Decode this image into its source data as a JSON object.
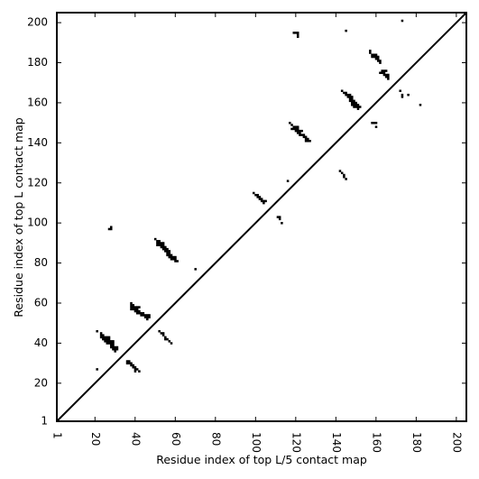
{
  "chart_data": {
    "type": "heatmap",
    "title": "",
    "xlabel": "Residue index of top L/5 contact map",
    "ylabel": "Residue index of top L contact map",
    "xlim": [
      1,
      205
    ],
    "ylim": [
      1,
      205
    ],
    "x_ticks": [
      1,
      20,
      40,
      60,
      80,
      100,
      120,
      140,
      160,
      180,
      200
    ],
    "y_ticks": [
      1,
      20,
      40,
      60,
      80,
      100,
      120,
      140,
      160,
      180,
      200
    ],
    "x_tick_labels": [
      "1",
      "20",
      "40",
      "60",
      "80",
      "100",
      "120",
      "140",
      "160",
      "180",
      "200"
    ],
    "y_tick_labels": [
      "1",
      "20",
      "40",
      "60",
      "80",
      "100",
      "120",
      "140",
      "160",
      "180",
      "200"
    ],
    "x_tick_rotation": -90,
    "grid": false,
    "diagonal_line": true,
    "colors": {
      "contact": "#000000",
      "background": "#ffffff"
    },
    "contacts_upper_top_L": [
      [
        119,
        195
      ],
      [
        120,
        195
      ],
      [
        121,
        195
      ],
      [
        121,
        194
      ],
      [
        121,
        193
      ],
      [
        145,
        196
      ],
      [
        173,
        201
      ],
      [
        157,
        186
      ],
      [
        157,
        185
      ],
      [
        158,
        184
      ],
      [
        159,
        184
      ],
      [
        160,
        184
      ],
      [
        158,
        183
      ],
      [
        159,
        183
      ],
      [
        160,
        183
      ],
      [
        161,
        183
      ],
      [
        160,
        182
      ],
      [
        161,
        182
      ],
      [
        161,
        181
      ],
      [
        162,
        181
      ],
      [
        162,
        180
      ],
      [
        163,
        176
      ],
      [
        164,
        176
      ],
      [
        165,
        176
      ],
      [
        162,
        175
      ],
      [
        163,
        175
      ],
      [
        164,
        175
      ],
      [
        164,
        174
      ],
      [
        165,
        174
      ],
      [
        166,
        174
      ],
      [
        165,
        173
      ],
      [
        166,
        173
      ],
      [
        166,
        172
      ],
      [
        143,
        166
      ],
      [
        144,
        165
      ],
      [
        145,
        165
      ],
      [
        145,
        164
      ],
      [
        146,
        164
      ],
      [
        147,
        164
      ],
      [
        146,
        163
      ],
      [
        147,
        163
      ],
      [
        148,
        163
      ],
      [
        147,
        162
      ],
      [
        148,
        162
      ],
      [
        147,
        161
      ],
      [
        148,
        161
      ],
      [
        149,
        161
      ],
      [
        148,
        160
      ],
      [
        149,
        160
      ],
      [
        150,
        160
      ],
      [
        148,
        159
      ],
      [
        149,
        159
      ],
      [
        150,
        159
      ],
      [
        151,
        159
      ],
      [
        149,
        158
      ],
      [
        150,
        158
      ],
      [
        151,
        158
      ],
      [
        152,
        158
      ],
      [
        151,
        157
      ],
      [
        172,
        166
      ],
      [
        173,
        164
      ],
      [
        176,
        164
      ],
      [
        173,
        163
      ],
      [
        182,
        159
      ],
      [
        117,
        150
      ],
      [
        118,
        149
      ],
      [
        119,
        148
      ],
      [
        120,
        148
      ],
      [
        121,
        148
      ],
      [
        118,
        147
      ],
      [
        119,
        147
      ],
      [
        120,
        147
      ],
      [
        121,
        147
      ],
      [
        120,
        146
      ],
      [
        121,
        146
      ],
      [
        122,
        146
      ],
      [
        123,
        146
      ],
      [
        121,
        145
      ],
      [
        122,
        145
      ],
      [
        122,
        144
      ],
      [
        123,
        144
      ],
      [
        124,
        144
      ],
      [
        124,
        143
      ],
      [
        125,
        143
      ],
      [
        125,
        142
      ],
      [
        126,
        142
      ],
      [
        125,
        141
      ],
      [
        126,
        141
      ],
      [
        127,
        141
      ],
      [
        158,
        150
      ],
      [
        159,
        150
      ],
      [
        160,
        150
      ],
      [
        160,
        148
      ],
      [
        116,
        121
      ],
      [
        142,
        126
      ],
      [
        143,
        125
      ],
      [
        144,
        124
      ],
      [
        144,
        123
      ],
      [
        145,
        122
      ],
      [
        99,
        115
      ],
      [
        100,
        114
      ],
      [
        101,
        114
      ],
      [
        101,
        113
      ],
      [
        102,
        113
      ],
      [
        102,
        112
      ],
      [
        103,
        112
      ],
      [
        103,
        111
      ],
      [
        104,
        111
      ],
      [
        105,
        111
      ],
      [
        104,
        110
      ],
      [
        111,
        103
      ],
      [
        112,
        103
      ],
      [
        112,
        102
      ],
      [
        113,
        100
      ],
      [
        27,
        97
      ],
      [
        28,
        97
      ],
      [
        28,
        98
      ],
      [
        50,
        92
      ],
      [
        51,
        91
      ],
      [
        52,
        91
      ],
      [
        51,
        90
      ],
      [
        52,
        90
      ],
      [
        53,
        90
      ],
      [
        54,
        90
      ],
      [
        51,
        89
      ],
      [
        52,
        89
      ],
      [
        53,
        89
      ],
      [
        54,
        89
      ],
      [
        53,
        88
      ],
      [
        54,
        88
      ],
      [
        55,
        88
      ],
      [
        54,
        87
      ],
      [
        55,
        87
      ],
      [
        56,
        87
      ],
      [
        55,
        86
      ],
      [
        56,
        86
      ],
      [
        57,
        86
      ],
      [
        56,
        85
      ],
      [
        57,
        85
      ],
      [
        56,
        84
      ],
      [
        57,
        84
      ],
      [
        58,
        84
      ],
      [
        57,
        83
      ],
      [
        58,
        83
      ],
      [
        59,
        83
      ],
      [
        60,
        83
      ],
      [
        58,
        82
      ],
      [
        59,
        82
      ],
      [
        60,
        82
      ],
      [
        60,
        81
      ],
      [
        61,
        81
      ]
    ],
    "contacts_lower_top_L5": [
      [
        70,
        77
      ],
      [
        38,
        60
      ],
      [
        38,
        59
      ],
      [
        39,
        59
      ],
      [
        38,
        58
      ],
      [
        39,
        58
      ],
      [
        40,
        58
      ],
      [
        41,
        58
      ],
      [
        42,
        58
      ],
      [
        38,
        57
      ],
      [
        39,
        57
      ],
      [
        40,
        57
      ],
      [
        41,
        57
      ],
      [
        40,
        56
      ],
      [
        41,
        56
      ],
      [
        42,
        56
      ],
      [
        41,
        55
      ],
      [
        42,
        55
      ],
      [
        43,
        55
      ],
      [
        44,
        55
      ],
      [
        43,
        54
      ],
      [
        44,
        54
      ],
      [
        45,
        54
      ],
      [
        46,
        54
      ],
      [
        47,
        54
      ],
      [
        45,
        53
      ],
      [
        46,
        53
      ],
      [
        47,
        53
      ],
      [
        46,
        52
      ],
      [
        21,
        46
      ],
      [
        23,
        45
      ],
      [
        23,
        44
      ],
      [
        24,
        44
      ],
      [
        23,
        43
      ],
      [
        24,
        43
      ],
      [
        25,
        43
      ],
      [
        26,
        43
      ],
      [
        27,
        43
      ],
      [
        24,
        42
      ],
      [
        25,
        42
      ],
      [
        26,
        42
      ],
      [
        27,
        42
      ],
      [
        25,
        41
      ],
      [
        26,
        41
      ],
      [
        27,
        41
      ],
      [
        28,
        41
      ],
      [
        29,
        41
      ],
      [
        26,
        40
      ],
      [
        27,
        40
      ],
      [
        28,
        40
      ],
      [
        29,
        40
      ],
      [
        28,
        39
      ],
      [
        29,
        39
      ],
      [
        28,
        38
      ],
      [
        29,
        38
      ],
      [
        30,
        38
      ],
      [
        31,
        38
      ],
      [
        29,
        37
      ],
      [
        30,
        37
      ],
      [
        31,
        37
      ],
      [
        30,
        36
      ],
      [
        52,
        46
      ],
      [
        53,
        45
      ],
      [
        54,
        45
      ],
      [
        54,
        44
      ],
      [
        55,
        43
      ],
      [
        55,
        42
      ],
      [
        56,
        42
      ],
      [
        57,
        41
      ],
      [
        58,
        40
      ],
      [
        36,
        31
      ],
      [
        37,
        31
      ],
      [
        36,
        30
      ],
      [
        37,
        30
      ],
      [
        38,
        30
      ],
      [
        38,
        29
      ],
      [
        39,
        29
      ],
      [
        39,
        28
      ],
      [
        40,
        28
      ],
      [
        40,
        27
      ],
      [
        41,
        27
      ],
      [
        40,
        26
      ],
      [
        42,
        26
      ],
      [
        21,
        27
      ]
    ]
  }
}
